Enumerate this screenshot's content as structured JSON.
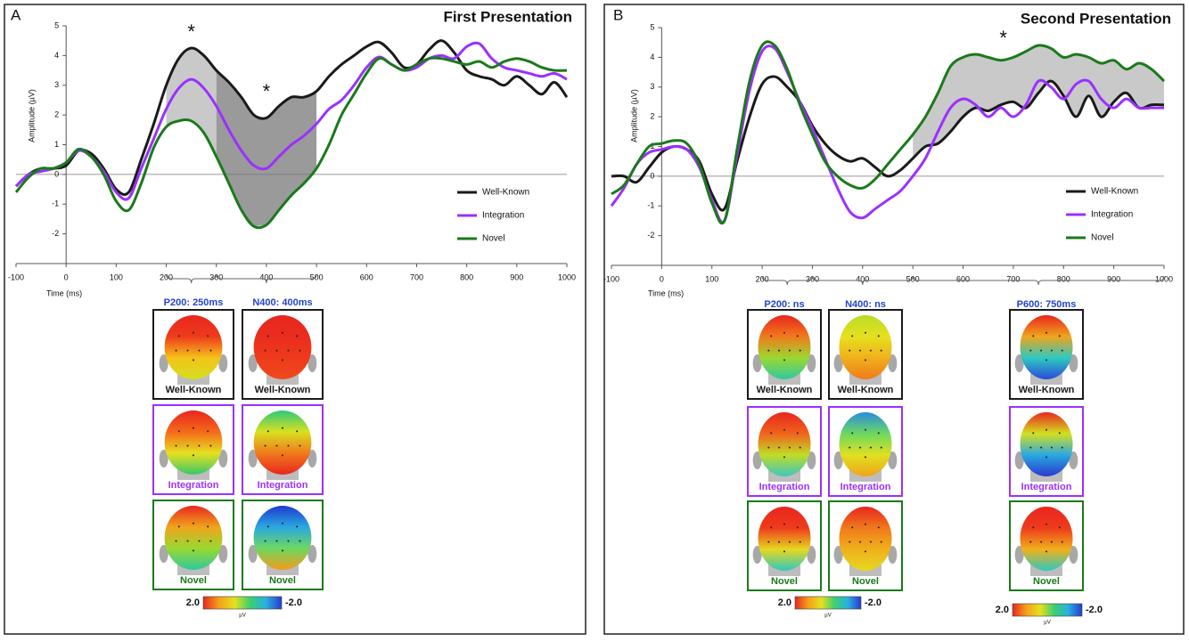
{
  "chart_data": [
    {
      "type": "line",
      "panel_label": "A",
      "title": "First Presentation",
      "x_label": "Time (ms)",
      "y_label": "Amplitude (µV)",
      "xlim": [
        -100,
        1000
      ],
      "ylim": [
        -3,
        5
      ],
      "xticks": [
        -100,
        0,
        100,
        200,
        300,
        400,
        500,
        600,
        700,
        800,
        900,
        1000
      ],
      "yticks": [
        -2,
        -1,
        0,
        1,
        2,
        3,
        4,
        5
      ],
      "x": [
        -100,
        -75,
        -50,
        -25,
        0,
        25,
        50,
        75,
        100,
        125,
        150,
        175,
        200,
        225,
        250,
        275,
        300,
        325,
        350,
        375,
        400,
        425,
        450,
        475,
        500,
        525,
        550,
        575,
        600,
        625,
        650,
        675,
        700,
        725,
        750,
        775,
        800,
        825,
        850,
        875,
        900,
        925,
        950,
        975,
        1000
      ],
      "series": [
        {
          "name": "Well-Known",
          "color": "#1a1a1a",
          "values": [
            -0.4,
            0.0,
            0.2,
            0.2,
            0.3,
            0.8,
            0.7,
            0.2,
            -0.5,
            -0.6,
            0.5,
            1.7,
            3.0,
            3.9,
            4.25,
            4.0,
            3.5,
            3.1,
            2.6,
            2.0,
            1.9,
            2.3,
            2.6,
            2.6,
            2.8,
            3.3,
            3.7,
            4.0,
            4.3,
            4.45,
            4.1,
            3.6,
            3.7,
            4.2,
            4.5,
            4.1,
            3.5,
            3.3,
            3.2,
            3.0,
            3.3,
            3.0,
            2.7,
            3.1,
            2.6
          ]
        },
        {
          "name": "Integration",
          "color": "#9b30ff",
          "values": [
            -0.4,
            0.0,
            0.1,
            0.2,
            0.4,
            0.8,
            0.6,
            0.1,
            -0.6,
            -0.8,
            0.2,
            1.2,
            2.2,
            2.9,
            3.2,
            2.9,
            2.3,
            1.5,
            0.8,
            0.3,
            0.2,
            0.6,
            1.0,
            1.3,
            1.7,
            2.2,
            2.5,
            3.0,
            3.6,
            3.95,
            3.7,
            3.5,
            3.6,
            3.9,
            4.0,
            3.9,
            4.3,
            4.4,
            3.9,
            3.6,
            3.5,
            3.4,
            3.3,
            3.4,
            3.2
          ]
        },
        {
          "name": "Novel",
          "color": "#1a7a1a",
          "values": [
            -0.6,
            -0.1,
            0.2,
            0.2,
            0.4,
            0.85,
            0.6,
            0.0,
            -0.9,
            -1.2,
            -0.3,
            0.9,
            1.6,
            1.8,
            1.8,
            1.4,
            0.6,
            -0.3,
            -1.2,
            -1.75,
            -1.7,
            -1.2,
            -0.7,
            -0.3,
            0.2,
            1.0,
            2.0,
            2.7,
            3.4,
            3.9,
            3.7,
            3.5,
            3.7,
            3.9,
            3.9,
            3.8,
            3.7,
            3.8,
            3.6,
            3.8,
            3.9,
            3.8,
            3.6,
            3.5,
            3.5
          ]
        }
      ],
      "annotations": [
        "*",
        "*"
      ],
      "windows": [
        {
          "label": "P200: 250ms",
          "range": [
            200,
            300
          ]
        },
        {
          "label": "N400: 400ms",
          "range": [
            300,
            500
          ]
        }
      ],
      "topomap_labels": [
        "Well-Known",
        "Integration",
        "Novel"
      ],
      "colorbar": {
        "ticks": [
          {
            "value": 2,
            "label": "2.0"
          },
          {
            "value": -2,
            "label": "-2.0"
          }
        ],
        "unit": "µV"
      }
    },
    {
      "type": "line",
      "panel_label": "B",
      "title": "Second Presentation",
      "x_label": "Time (ms)",
      "y_label": "Amplitude (µV)",
      "xlim": [
        -100,
        1000
      ],
      "ylim": [
        -3,
        5
      ],
      "xticks": [
        -100,
        0,
        100,
        200,
        300,
        400,
        500,
        600,
        700,
        800,
        900,
        1000
      ],
      "yticks": [
        -2,
        -1,
        0,
        1,
        2,
        3,
        4,
        5
      ],
      "x": [
        -100,
        -75,
        -50,
        -25,
        0,
        25,
        50,
        75,
        100,
        125,
        150,
        175,
        200,
        225,
        250,
        275,
        300,
        325,
        350,
        375,
        400,
        425,
        450,
        475,
        500,
        525,
        550,
        575,
        600,
        625,
        650,
        675,
        700,
        725,
        750,
        775,
        800,
        825,
        850,
        875,
        900,
        925,
        950,
        975,
        1000
      ],
      "series": [
        {
          "name": "Well-Known",
          "color": "#1a1a1a",
          "values": [
            0.0,
            0.0,
            -0.2,
            0.3,
            0.8,
            1.0,
            0.9,
            0.5,
            -0.6,
            -1.1,
            0.5,
            2.0,
            3.1,
            3.35,
            3.0,
            2.5,
            1.7,
            1.1,
            0.7,
            0.5,
            0.6,
            0.3,
            0.0,
            0.2,
            0.6,
            1.0,
            1.1,
            1.5,
            2.0,
            2.3,
            2.2,
            2.4,
            2.5,
            2.3,
            2.8,
            3.2,
            2.7,
            2.0,
            2.7,
            2.0,
            2.5,
            2.8,
            2.3,
            2.4,
            2.4
          ]
        },
        {
          "name": "Integration",
          "color": "#9b30ff",
          "values": [
            -1.0,
            -0.4,
            0.4,
            0.8,
            0.9,
            1.0,
            0.9,
            0.3,
            -0.8,
            -1.5,
            0.7,
            2.9,
            4.2,
            4.3,
            3.5,
            2.5,
            1.6,
            0.6,
            -0.4,
            -1.2,
            -1.4,
            -1.1,
            -0.8,
            -0.5,
            0.0,
            0.6,
            1.5,
            2.3,
            2.6,
            2.4,
            2.0,
            2.3,
            2.0,
            2.4,
            3.2,
            3.0,
            2.6,
            3.1,
            3.2,
            2.6,
            2.3,
            2.6,
            2.3,
            2.3,
            2.3
          ]
        },
        {
          "name": "Novel",
          "color": "#1a7a1a",
          "values": [
            -0.6,
            -0.3,
            0.4,
            1.0,
            1.1,
            1.2,
            1.1,
            0.4,
            -0.9,
            -1.5,
            0.9,
            3.2,
            4.4,
            4.4,
            3.6,
            2.4,
            1.4,
            0.5,
            0.0,
            -0.3,
            -0.4,
            -0.1,
            0.4,
            0.9,
            1.4,
            2.0,
            2.8,
            3.7,
            4.0,
            4.1,
            4.0,
            3.9,
            4.0,
            4.2,
            4.4,
            4.3,
            4.0,
            4.1,
            4.0,
            3.8,
            3.9,
            3.6,
            3.8,
            3.6,
            3.2
          ]
        }
      ],
      "annotations": [
        "*"
      ],
      "windows": [
        {
          "label": "P200: ns",
          "range": [
            200,
            300
          ]
        },
        {
          "label": "N400: ns",
          "range": [
            300,
            500
          ]
        },
        {
          "label": "P600: 750ms",
          "range": [
            500,
            1000
          ]
        }
      ],
      "topomap_labels": [
        "Well-Known",
        "Integration",
        "Novel"
      ],
      "colorbar": {
        "ticks": [
          {
            "value": 2,
            "label": "2.0"
          },
          {
            "value": -2,
            "label": "-2.0"
          }
        ],
        "unit": "µV"
      }
    }
  ]
}
